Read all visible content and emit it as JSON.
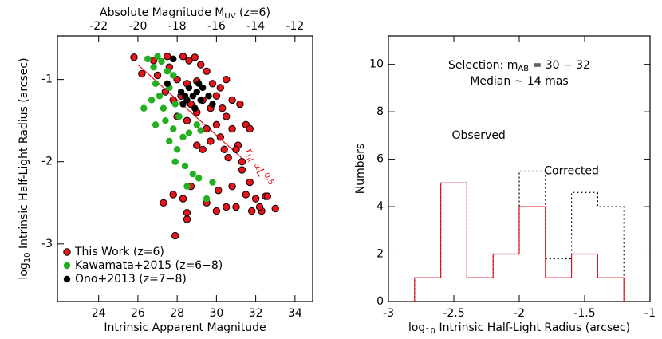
{
  "chart_data": [
    {
      "type": "scatter",
      "xlabel": "Intrinsic Apparent Magnitude",
      "ylabel": {
        "prefix": "log",
        "sub": "10",
        "rest": " Intrinsic Half-Light Radius (arcsec)"
      },
      "x2label": {
        "prefix": "Absolute Magnitude M",
        "sub": "UV",
        "rest": " (z=6)"
      },
      "xlim": [
        21.9,
        34.9
      ],
      "xticks": [
        24,
        26,
        28,
        30,
        32,
        34
      ],
      "x2lim": [
        -24.1,
        -11.1
      ],
      "x2ticks": [
        -22,
        -20,
        -18,
        -16,
        -14,
        -12
      ],
      "ylim": [
        -3.7,
        -0.47
      ],
      "yticks": [
        -3,
        -2,
        -1
      ],
      "legend": "bottom-left",
      "series": [
        {
          "name": "This Work (z=6)",
          "color": "#e8141a",
          "x": [
            25.8,
            26.2,
            26.8,
            27.0,
            27.5,
            27.6,
            28.3,
            28.6,
            28.9,
            29.2,
            29.5,
            28.0,
            28.5,
            29.0,
            29.8,
            30.2,
            30.5,
            27.4,
            27.8,
            28.2,
            28.7,
            29.3,
            29.7,
            30.0,
            30.3,
            30.8,
            31.2,
            28.0,
            28.5,
            29.0,
            29.5,
            30.0,
            30.5,
            30.2,
            29.7,
            30.8,
            31.1,
            31.5,
            31.7,
            29.0,
            29.3,
            30.4,
            30.6,
            31.0,
            31.3,
            27.3,
            27.8,
            28.3,
            28.7,
            28.5,
            27.9,
            28.5,
            29.5,
            30.0,
            30.5,
            30.8,
            31.3,
            31.5,
            31.8,
            32.0,
            32.3,
            32.5,
            32.6,
            33.0,
            32.2,
            31.7,
            31.0,
            30.1
          ],
          "values": [
            -0.73,
            -0.93,
            -0.77,
            -0.95,
            -0.72,
            -0.85,
            -0.72,
            -0.77,
            -0.73,
            -0.82,
            -0.9,
            -1.0,
            -1.05,
            -1.02,
            -1.05,
            -1.1,
            -1.0,
            -1.15,
            -1.25,
            -1.2,
            -1.3,
            -1.25,
            -1.35,
            -1.2,
            -1.35,
            -1.25,
            -1.3,
            -1.45,
            -1.5,
            -1.4,
            -1.6,
            -1.55,
            -1.45,
            -1.7,
            -1.75,
            -1.6,
            -1.8,
            -1.55,
            -1.6,
            -1.8,
            -1.85,
            -1.85,
            -1.95,
            -1.85,
            -2.0,
            -2.5,
            -2.4,
            -2.45,
            -2.3,
            -2.7,
            -2.9,
            -2.62,
            -2.5,
            -2.6,
            -2.55,
            -2.3,
            -2.1,
            -2.4,
            -2.6,
            -2.45,
            -2.6,
            -2.42,
            -2.42,
            -2.57,
            -2.55,
            -2.25,
            -2.55,
            -2.35
          ]
        },
        {
          "name": "Kawamata+2015 (z=6−8)",
          "color": "#22b020",
          "x": [
            26.3,
            26.5,
            26.8,
            27.0,
            27.2,
            26.9,
            27.1,
            26.7,
            27.5,
            27.8,
            27.3,
            27.6,
            27.9,
            28.1,
            26.9,
            27.4,
            27.8,
            28.3,
            28.6,
            29.0,
            27.6,
            28.0,
            29.2,
            28.4,
            28.8,
            29.1,
            28.5,
            29.5,
            27.9,
            29.8
          ],
          "values": [
            -1.35,
            -0.75,
            -0.85,
            -0.72,
            -0.78,
            -1.05,
            -1.2,
            -1.25,
            -0.9,
            -0.95,
            -1.35,
            -1.1,
            -1.3,
            -1.45,
            -1.55,
            -1.5,
            -1.6,
            -1.7,
            -1.65,
            -1.55,
            -1.75,
            -1.85,
            -1.62,
            -2.05,
            -2.15,
            -2.2,
            -2.3,
            -2.45,
            -2.0,
            -2.25
          ]
        },
        {
          "name": "Ono+2013 (z=7−8)",
          "color": "#000000",
          "x": [
            27.8,
            27.5,
            28.2,
            28.4,
            28.6,
            28.8,
            29.0,
            29.2,
            29.3,
            28.5,
            28.3,
            29.6,
            29.8,
            28.9,
            29.1
          ],
          "values": [
            -0.75,
            -1.05,
            -1.15,
            -1.2,
            -1.1,
            -1.2,
            -1.15,
            -1.25,
            -1.1,
            -1.25,
            -1.3,
            -1.2,
            -1.3,
            -1.35,
            -1.05
          ]
        }
      ],
      "fit_line": {
        "color": "#e8141a",
        "x": [
          26.0,
          31.5
        ],
        "values": [
          -0.82,
          -2.0
        ]
      },
      "annotation": {
        "prefix": "r",
        "sub": "hl",
        "rest": " ∝L",
        "sup": "0.5",
        "color": "#e8141a"
      }
    },
    {
      "type": "histogram",
      "xlabel": {
        "prefix": "log",
        "sub": "10",
        "rest": " Intrinsic Half-Light Radius (arcsec)"
      },
      "ylabel": "Numbers",
      "xlim": [
        -3,
        -1
      ],
      "xticks": [
        -3,
        -2.5,
        -2,
        -1.5,
        -1
      ],
      "ylim": [
        0,
        11.2
      ],
      "yticks": [
        0,
        2,
        4,
        6,
        8,
        10
      ],
      "bins": [
        -2.8,
        -2.6,
        -2.4,
        -2.2,
        -2.0,
        -1.8,
        -1.6,
        -1.4,
        -1.2
      ],
      "series": [
        {
          "name": "Corrected",
          "color": "#000000",
          "style": "dotted",
          "values": [
            1,
            5,
            1,
            2,
            5.5,
            1.8,
            4.6,
            4.0
          ]
        },
        {
          "name": "Observed",
          "color": "#e8141a",
          "style": "solid",
          "values": [
            1,
            5,
            1,
            2,
            4,
            1,
            2,
            1
          ]
        }
      ],
      "selection": {
        "prefix": "Selection: m",
        "sub": "AB",
        "rest": " = 30 − 32"
      },
      "median": "Median ~ 14 mas"
    }
  ]
}
